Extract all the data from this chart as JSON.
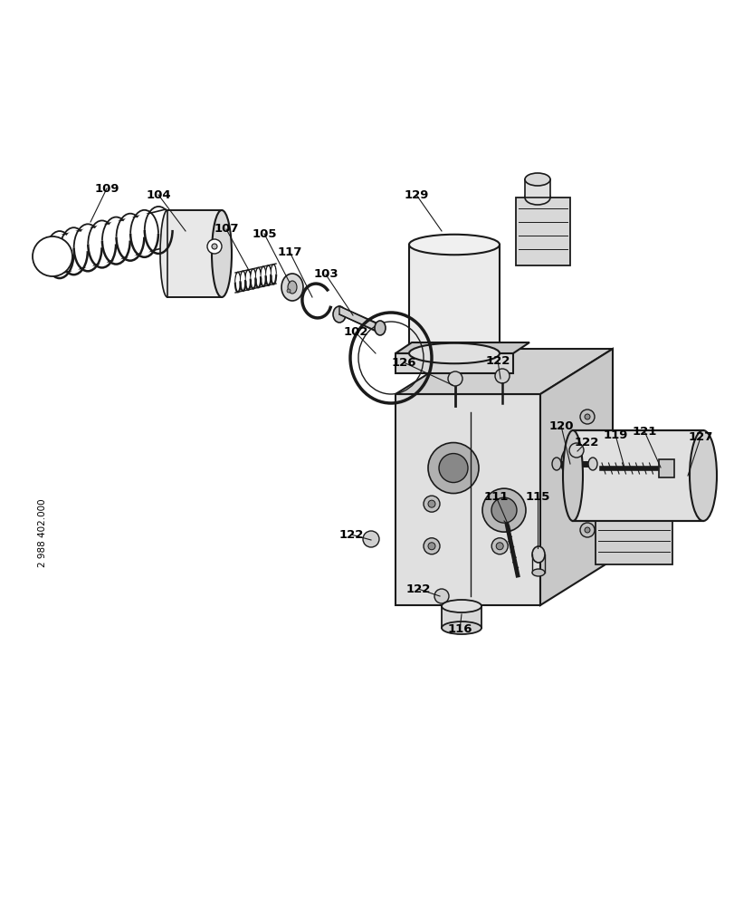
{
  "bg_color": "#ffffff",
  "line_color": "#1a1a1a",
  "side_text": "2 988 402.000",
  "fig_w": 8.12,
  "fig_h": 10.0,
  "dpi": 100
}
